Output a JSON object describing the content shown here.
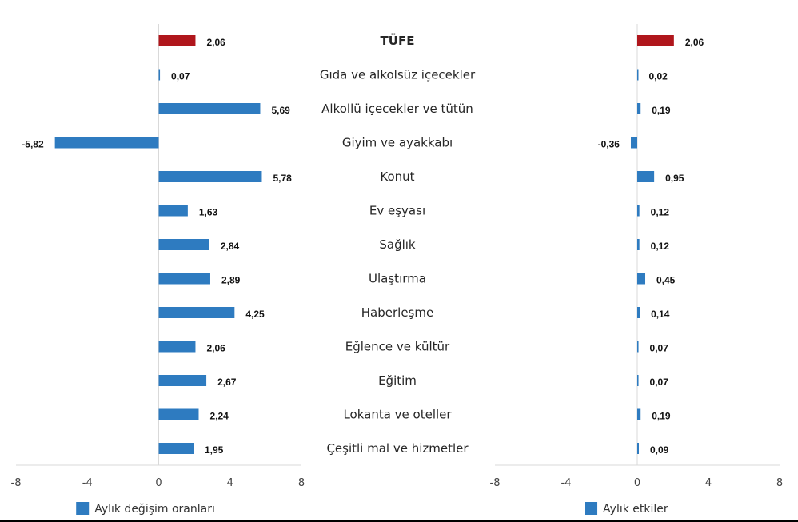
{
  "chart_data": {
    "type": "bar",
    "orientation": "horizontal",
    "categories": [
      "TÜFE",
      "Gıda ve alkolsüz içecekler",
      "Alkollü içecekler ve tütün",
      "Giyim ve ayakkabı",
      "Konut",
      "Ev eşyası",
      "Sağlık",
      "Ulaştırma",
      "Haberleşme",
      "Eğlence ve kültür",
      "Eğitim",
      "Lokanta ve oteller",
      "Çeşitli mal ve hizmetler"
    ],
    "highlight_index": 0,
    "colors": {
      "highlight": "#B0161C",
      "series": "#2E7BC0"
    },
    "panels": [
      {
        "legend": "Aylık değişim oranları",
        "legend_position": "bottom",
        "xlim": [
          -8,
          8
        ],
        "xticks": [
          -8,
          -4,
          0,
          4,
          8
        ],
        "values": [
          2.06,
          0.07,
          5.69,
          -5.82,
          5.78,
          1.63,
          2.84,
          2.89,
          4.25,
          2.06,
          2.67,
          2.24,
          1.95
        ],
        "labels": [
          "2,06",
          "0,07",
          "5,69",
          "-5,82",
          "5,78",
          "1,63",
          "2,84",
          "2,89",
          "4,25",
          "2,06",
          "2,67",
          "2,24",
          "1,95"
        ]
      },
      {
        "legend": "Aylık etkiler",
        "legend_position": "bottom",
        "xlim": [
          -8,
          8
        ],
        "xticks": [
          -8,
          -4,
          0,
          4,
          8
        ],
        "values": [
          2.06,
          0.02,
          0.19,
          -0.36,
          0.95,
          0.12,
          0.12,
          0.45,
          0.14,
          0.07,
          0.07,
          0.19,
          0.09
        ],
        "labels": [
          "2,06",
          "0,02",
          "0,19",
          "-0,36",
          "0,95",
          "0,12",
          "0,12",
          "0,45",
          "0,14",
          "0,07",
          "0,07",
          "0,19",
          "0,09"
        ]
      }
    ]
  }
}
